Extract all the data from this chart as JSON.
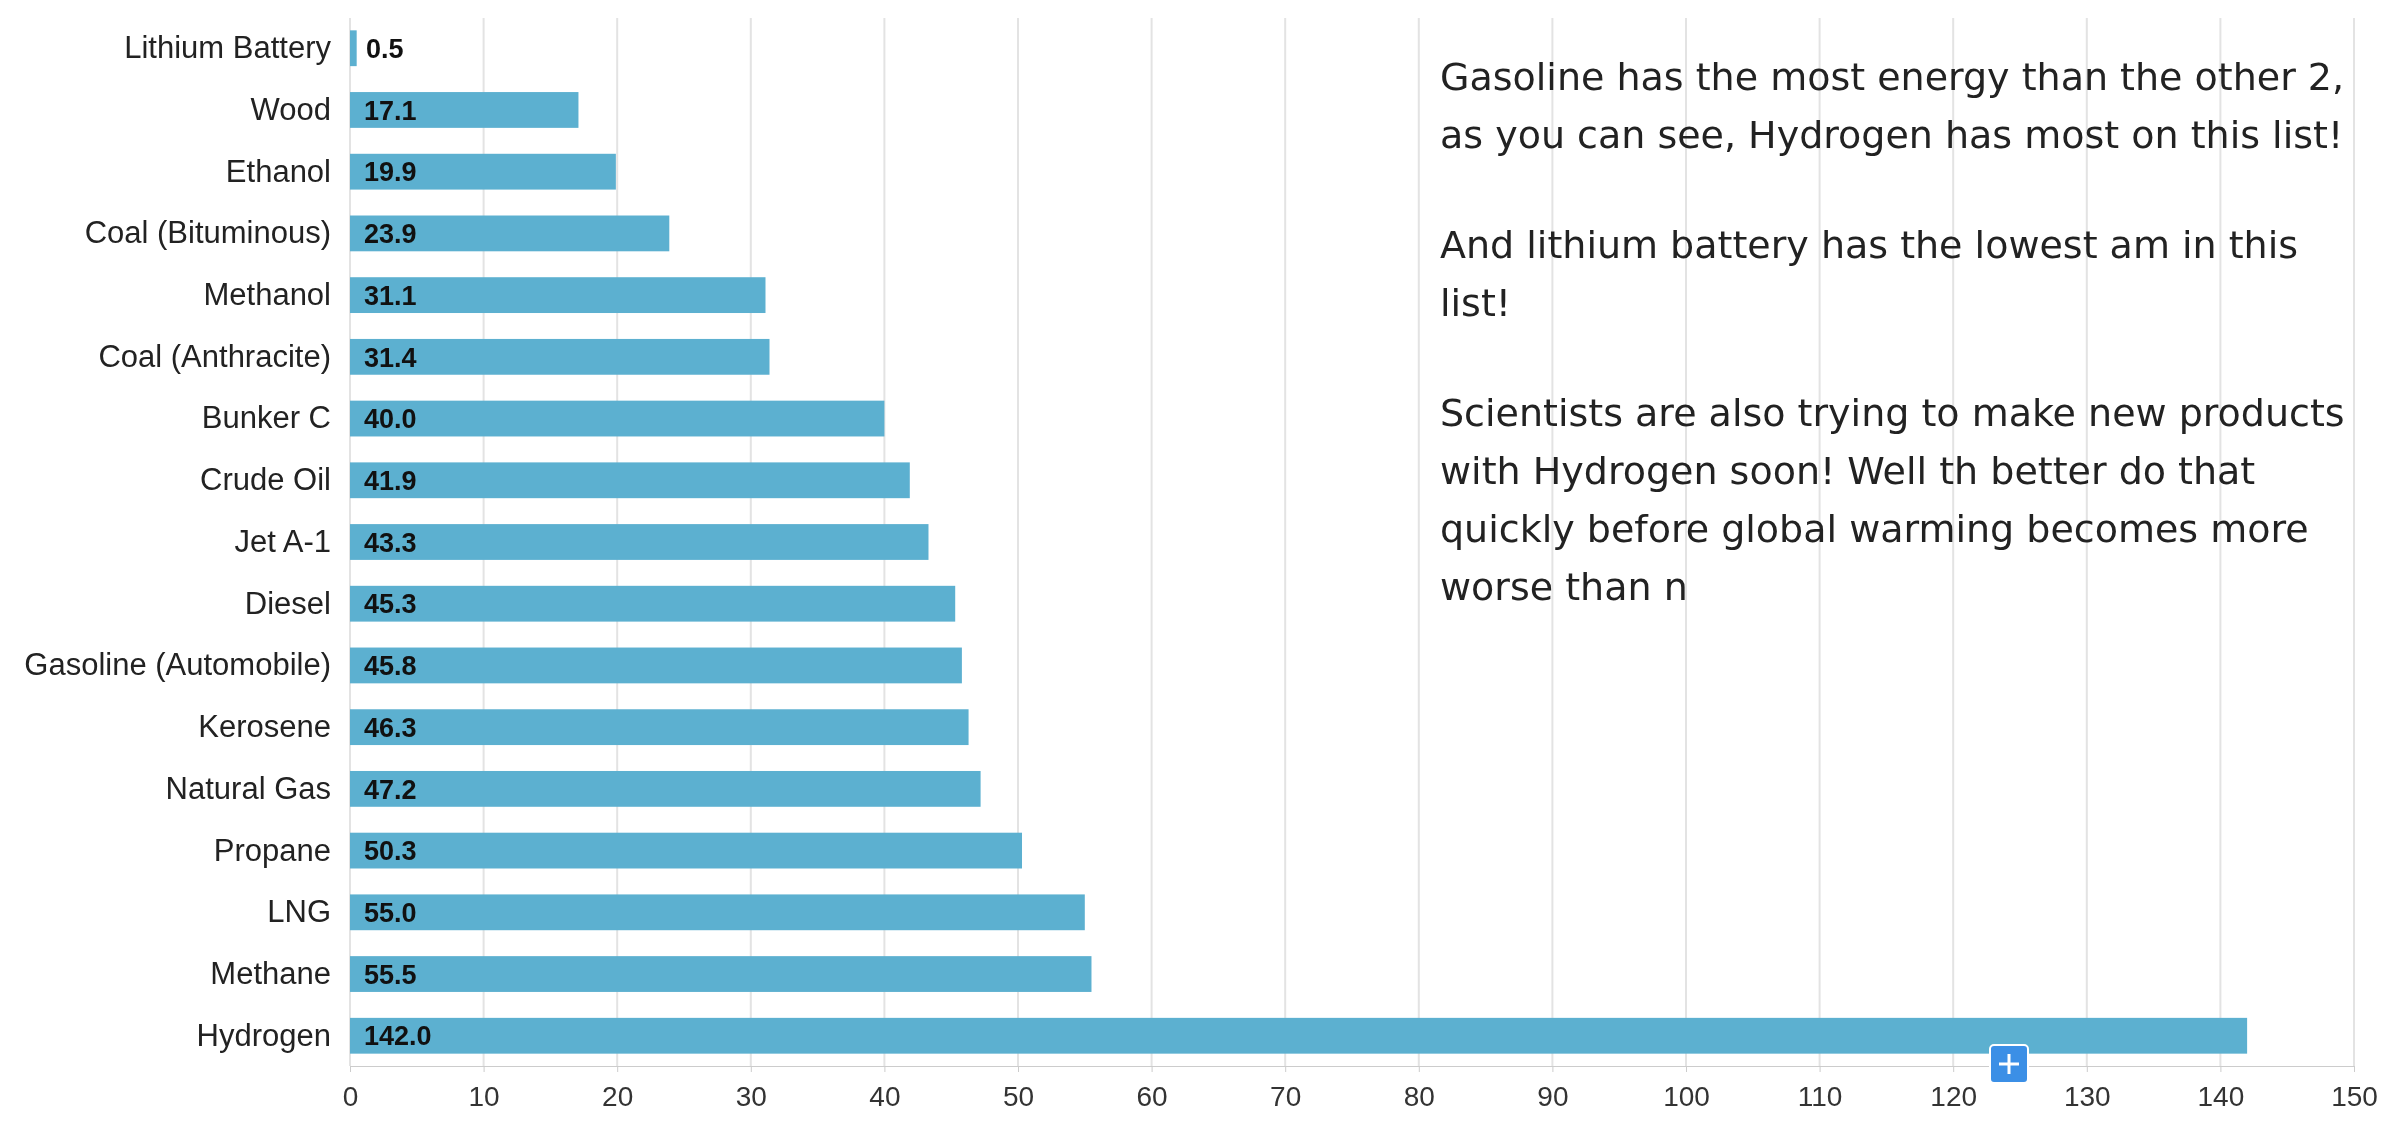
{
  "chart_data": {
    "type": "bar",
    "orientation": "horizontal",
    "categories": [
      "Lithium Battery",
      "Wood",
      "Ethanol",
      "Coal (Bituminous)",
      "Methanol",
      "Coal (Anthracite)",
      "Bunker C",
      "Crude Oil",
      "Jet A-1",
      "Diesel",
      "Gasoline (Automobile)",
      "Kerosene",
      "Natural Gas",
      "Propane",
      "LNG",
      "Methane",
      "Hydrogen"
    ],
    "values": [
      0.5,
      17.1,
      19.9,
      23.9,
      31.1,
      31.4,
      40.0,
      41.9,
      43.3,
      45.3,
      45.8,
      46.3,
      47.2,
      50.3,
      55.0,
      55.5,
      142.0
    ],
    "value_labels": [
      "0.5",
      "17.1",
      "19.9",
      "23.9",
      "31.1",
      "31.4",
      "40.0",
      "41.9",
      "43.3",
      "45.3",
      "45.8",
      "46.3",
      "47.2",
      "50.3",
      "55.0",
      "55.5",
      "142.0"
    ],
    "color": "#5cb0d0",
    "xlim": [
      0,
      150
    ],
    "xticks": [
      0,
      10,
      20,
      30,
      40,
      50,
      60,
      70,
      80,
      90,
      100,
      110,
      120,
      130,
      140,
      150
    ],
    "grid": "x",
    "annotations": [
      "Gasoline has the most energy than the other 2, as you can see, Hydrogen has most on this list!",
      "And lithium battery has the lowest am in this list!",
      "Scientists are also trying to make new products with Hydrogen soon! Well th better do that quickly before global warming becomes more worse than n"
    ]
  }
}
